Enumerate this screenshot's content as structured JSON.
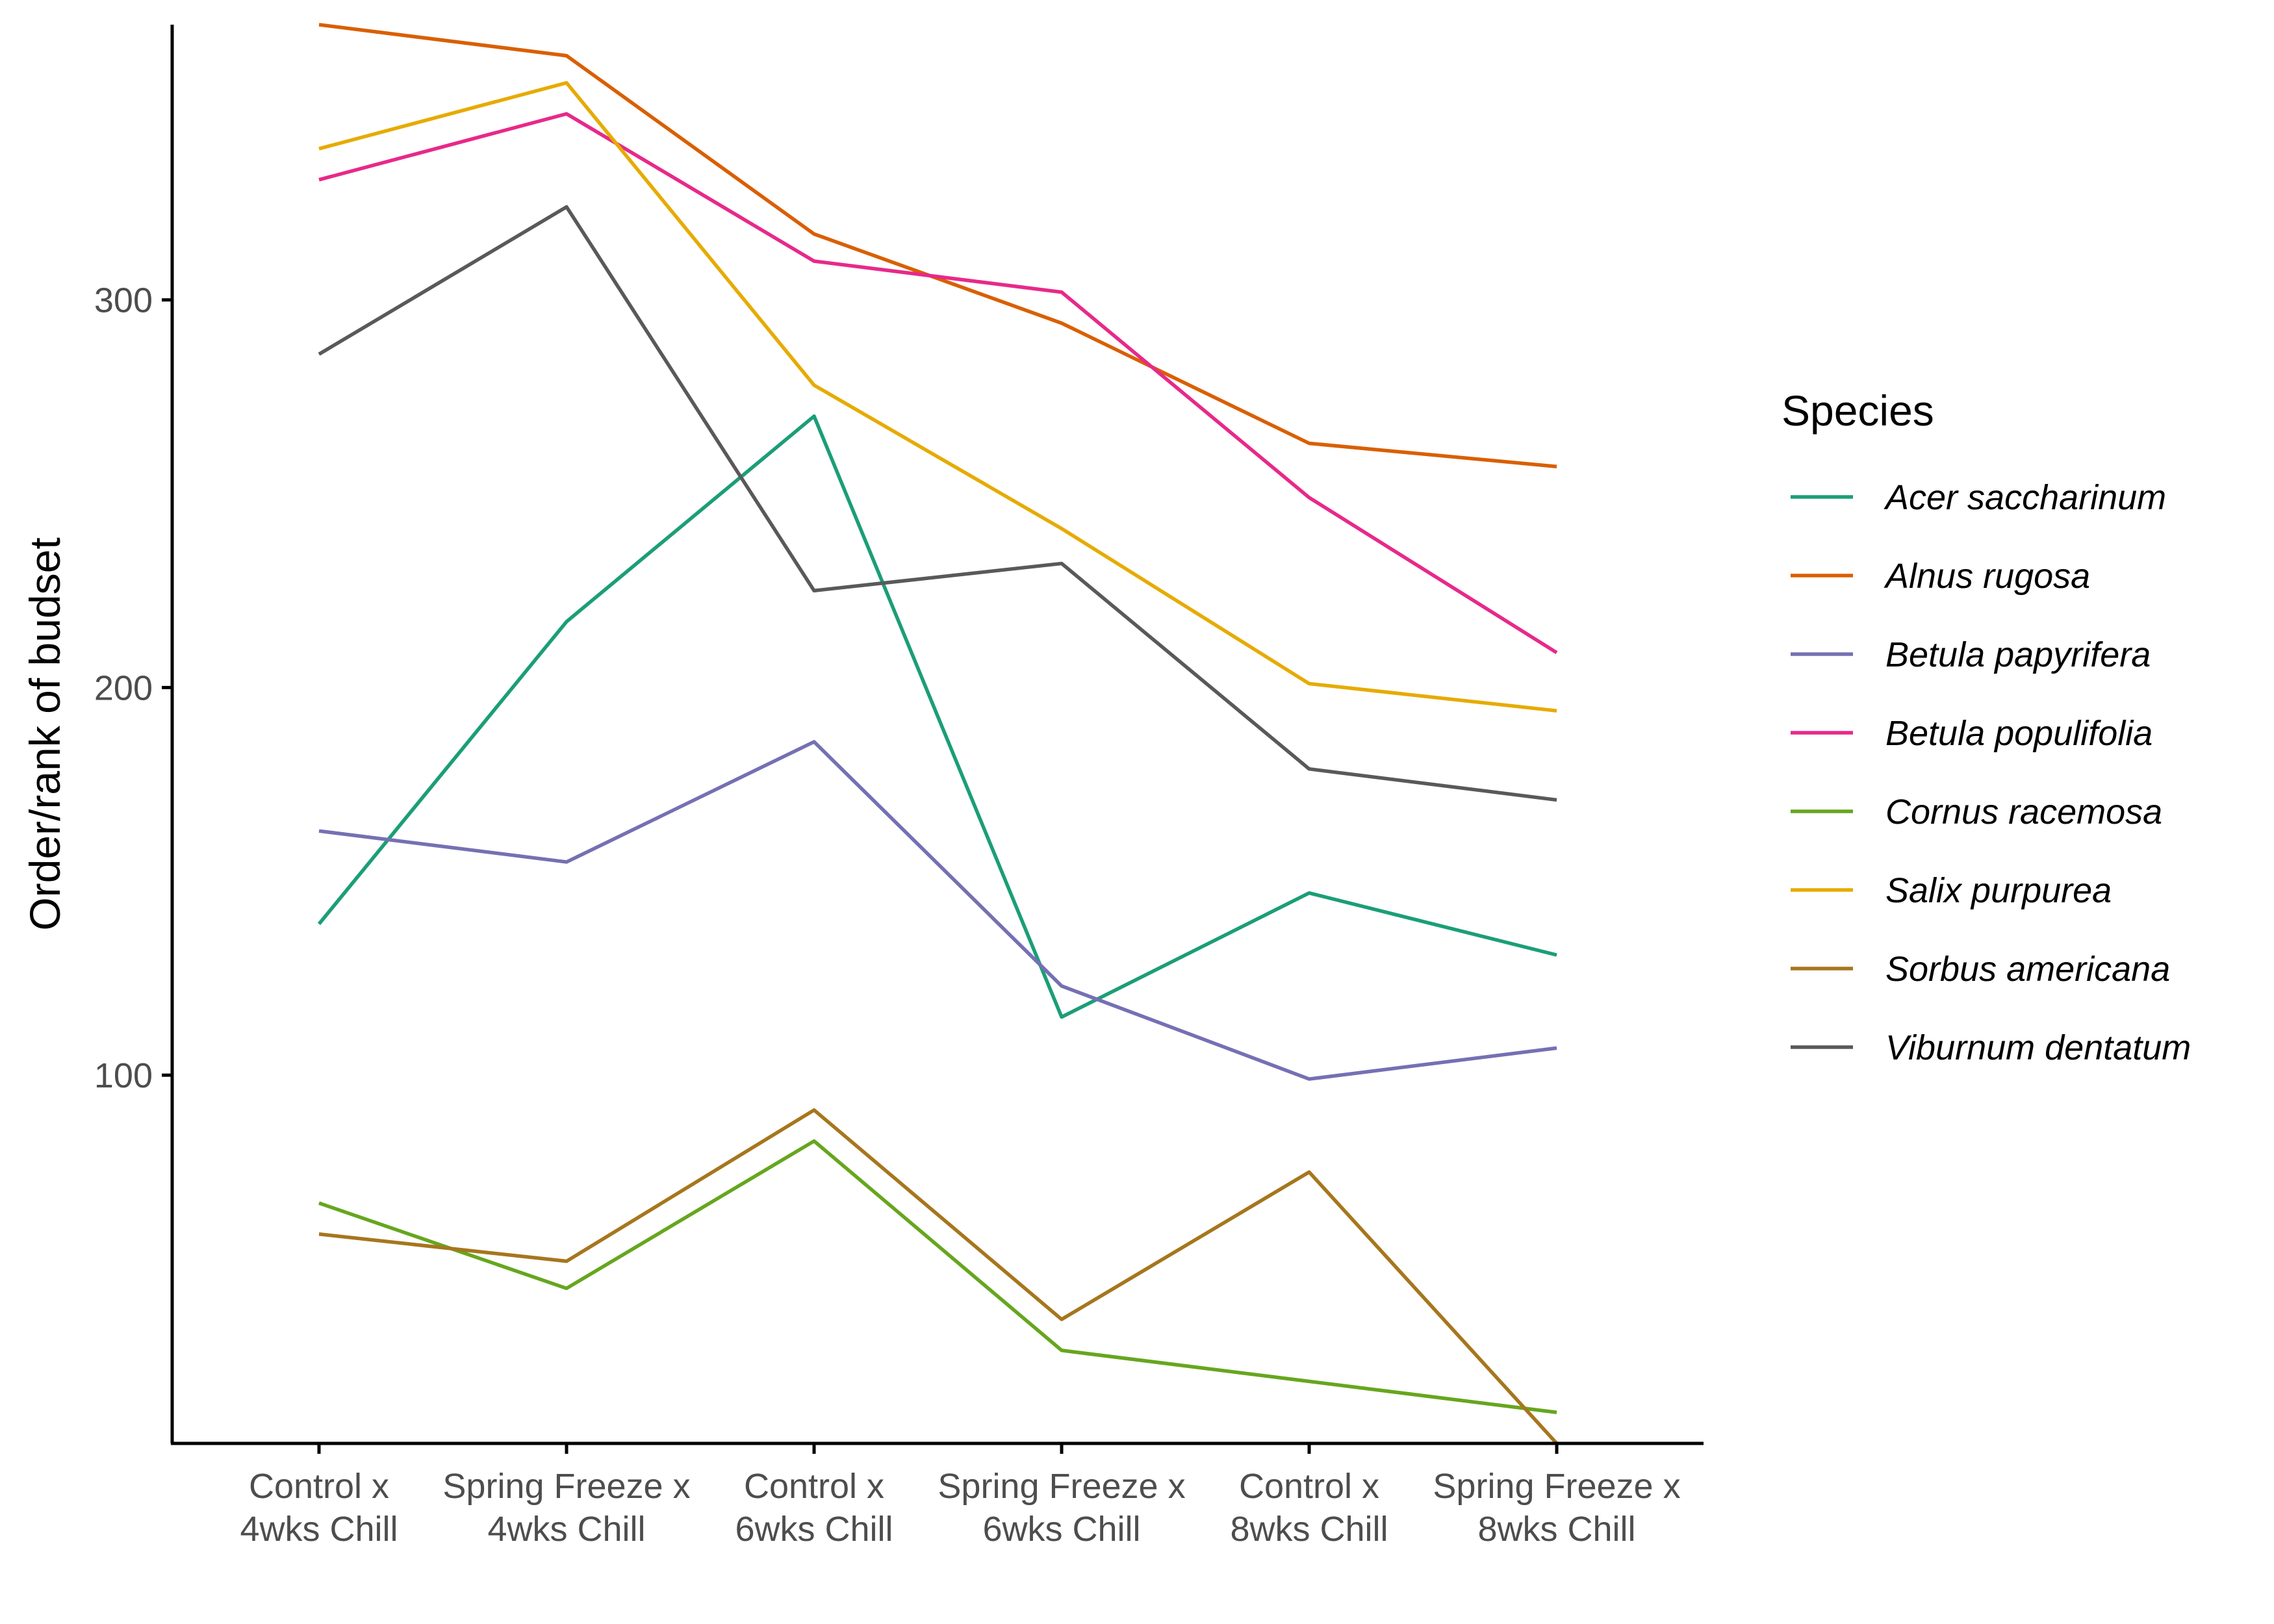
{
  "chart_data": {
    "type": "line",
    "title": "",
    "xlabel": "",
    "ylabel": "Order/rank of budset",
    "x": [
      "Control x\n4wks Chill",
      "Spring Freeze x\n4wks Chill",
      "Control x\n6wks Chill",
      "Spring Freeze x\n6wks Chill",
      "Control x\n8wks Chill",
      "Spring Freeze x\n8wks Chill"
    ],
    "yticks": [
      100,
      200,
      300
    ],
    "ylim": [
      5,
      371
    ],
    "grid": false,
    "legend": {
      "title": "Species",
      "placement": "right"
    },
    "series": [
      {
        "name": "Acer saccharinum",
        "color": "#1B9E77",
        "values": [
          139,
          217,
          270,
          115,
          147,
          131
        ]
      },
      {
        "name": "Alnus rugosa",
        "color": "#D95F02",
        "values": [
          371,
          363,
          317,
          294,
          263,
          257
        ]
      },
      {
        "name": "Betula papyrifera",
        "color": "#7570B3",
        "values": [
          163,
          155,
          186,
          123,
          99,
          107
        ]
      },
      {
        "name": "Betula populifolia",
        "color": "#E7298A",
        "values": [
          331,
          348,
          310,
          302,
          249,
          209
        ]
      },
      {
        "name": "Cornus racemosa",
        "color": "#66A61E",
        "values": [
          67,
          45,
          83,
          29,
          21,
          13
        ]
      },
      {
        "name": "Salix purpurea",
        "color": "#E6AB02",
        "values": [
          339,
          356,
          278,
          241,
          201,
          194
        ]
      },
      {
        "name": "Sorbus americana",
        "color": "#A6761D",
        "values": [
          59,
          52,
          91,
          37,
          75,
          5
        ]
      },
      {
        "name": "Viburnum dentatum",
        "color": "#595959",
        "values": [
          286,
          324,
          225,
          232,
          179,
          171
        ]
      }
    ]
  }
}
